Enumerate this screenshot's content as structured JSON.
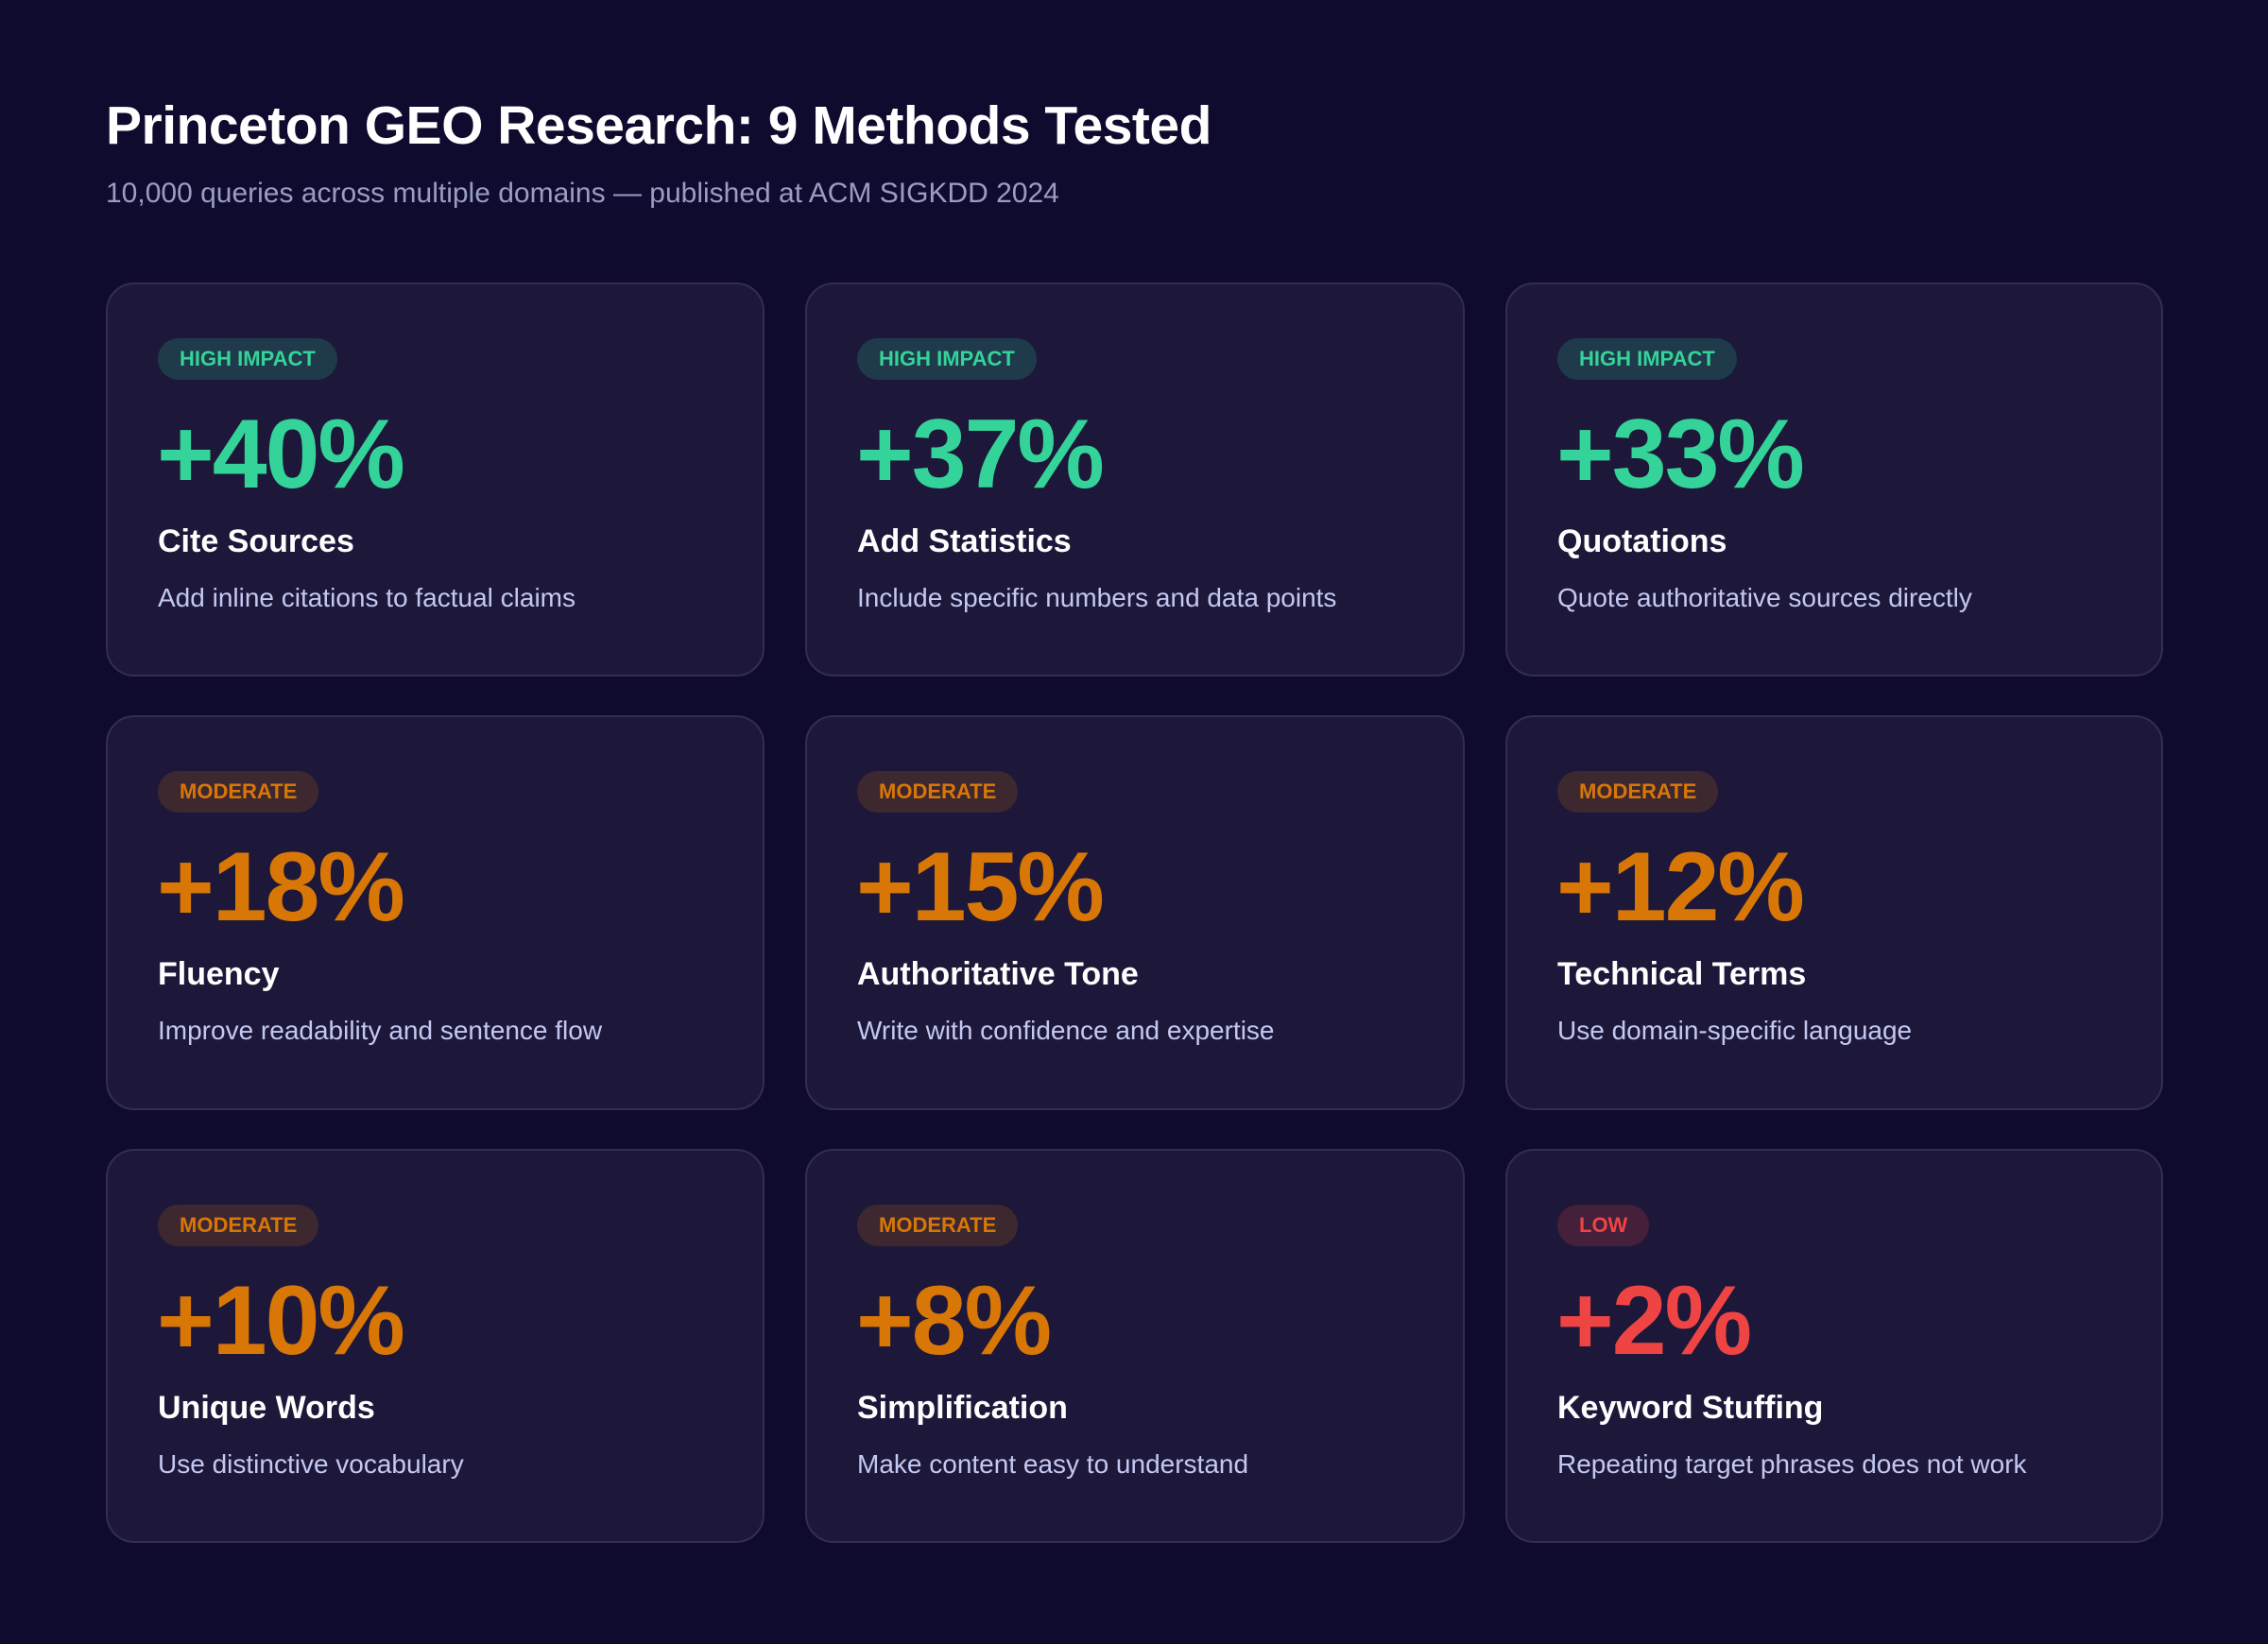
{
  "header": {
    "title": "Princeton GEO Research: 9 Methods Tested",
    "subtitle": "10,000 queries across multiple domains — published at ACM SIGKDD 2024"
  },
  "colors": {
    "background": "#0f0b2e",
    "card": "#1d1839",
    "high": "#34d399",
    "moderate": "#d97706",
    "low": "#ef4444"
  },
  "methods": [
    {
      "level": "high",
      "badge": "HIGH IMPACT",
      "value": "+40%",
      "name": "Cite Sources",
      "description": "Add inline citations to factual claims"
    },
    {
      "level": "high",
      "badge": "HIGH IMPACT",
      "value": "+37%",
      "name": "Add Statistics",
      "description": "Include specific numbers and data points"
    },
    {
      "level": "high",
      "badge": "HIGH IMPACT",
      "value": "+33%",
      "name": "Quotations",
      "description": "Quote authoritative sources directly"
    },
    {
      "level": "moderate",
      "badge": "MODERATE",
      "value": "+18%",
      "name": "Fluency",
      "description": "Improve readability and sentence flow"
    },
    {
      "level": "moderate",
      "badge": "MODERATE",
      "value": "+15%",
      "name": "Authoritative Tone",
      "description": "Write with confidence and expertise"
    },
    {
      "level": "moderate",
      "badge": "MODERATE",
      "value": "+12%",
      "name": "Technical Terms",
      "description": "Use domain-specific language"
    },
    {
      "level": "moderate",
      "badge": "MODERATE",
      "value": "+10%",
      "name": "Unique Words",
      "description": "Use distinctive vocabulary"
    },
    {
      "level": "moderate",
      "badge": "MODERATE",
      "value": "+8%",
      "name": "Simplification",
      "description": "Make content easy to understand"
    },
    {
      "level": "low",
      "badge": "LOW",
      "value": "+2%",
      "name": "Keyword Stuffing",
      "description": "Repeating target phrases does not work"
    }
  ]
}
